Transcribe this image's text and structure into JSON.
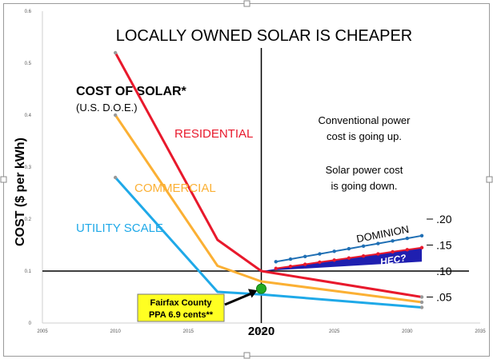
{
  "chart_data": {
    "type": "line",
    "title": "LOCALLY OWNED SOLAR IS CHEAPER",
    "subtitle": "COST OF SOLAR*",
    "subtitle_source": "(U.S. D.O.E.)",
    "ylabel": "COST ($ per kWh)",
    "xlabel": "",
    "xlim": [
      2005,
      2035
    ],
    "ylim": [
      0,
      0.6
    ],
    "x_ticks": [
      "2005",
      "2010",
      "2015",
      "2020",
      "2025",
      "2030",
      "2035"
    ],
    "y_ticks": [
      "0",
      "0.1",
      "0.2",
      "0.3",
      "0.4",
      "0.5",
      "0.6"
    ],
    "right_ticks": [
      {
        "value": 0.2,
        "label": ".20"
      },
      {
        "value": 0.15,
        "label": ".15"
      },
      {
        "value": 0.1,
        "label": ".10"
      },
      {
        "value": 0.05,
        "label": ".05"
      }
    ],
    "grid": false,
    "reference_line": {
      "y": 0.1
    },
    "year_marker": {
      "x": 2020,
      "label": "2020"
    },
    "series": [
      {
        "name": "RESIDENTIAL",
        "color": "#e8192c",
        "x": [
          2010,
          2017,
          2020,
          2031
        ],
        "y": [
          0.52,
          0.16,
          0.1,
          0.05
        ]
      },
      {
        "name": "COMMERCIAL",
        "color": "#fbb034",
        "x": [
          2010,
          2017,
          2020,
          2031
        ],
        "y": [
          0.4,
          0.11,
          0.08,
          0.04
        ]
      },
      {
        "name": "UTILITY SCALE",
        "color": "#1fa9e8",
        "x": [
          2010,
          2017,
          2020,
          2031
        ],
        "y": [
          0.28,
          0.06,
          0.055,
          0.03
        ]
      },
      {
        "name": "DOMINION",
        "color": "#1f6fb4",
        "x": [
          2021,
          2022,
          2023,
          2024,
          2025,
          2026,
          2027,
          2028,
          2029,
          2030,
          2031
        ],
        "y": [
          0.118,
          0.123,
          0.128,
          0.133,
          0.138,
          0.143,
          0.148,
          0.153,
          0.158,
          0.163,
          0.168
        ]
      },
      {
        "name": "HEC?",
        "color": "#e8192c",
        "x": [
          2021,
          2022,
          2023,
          2024,
          2025,
          2026,
          2027,
          2028,
          2029,
          2030,
          2031
        ],
        "y": [
          0.105,
          0.109,
          0.113,
          0.117,
          0.121,
          0.125,
          0.129,
          0.133,
          0.137,
          0.141,
          0.145
        ]
      }
    ],
    "wedge_label": "HEC?",
    "wedge_color": "#1f1fb0",
    "annotations": [
      {
        "text": "Conventional power cost is going up.",
        "lines": [
          "Conventional power",
          "cost is going up."
        ]
      },
      {
        "text": "Solar power cost is going down.",
        "lines": [
          "Solar power cost",
          "is going down."
        ]
      }
    ],
    "callout": {
      "lines": [
        "Fairfax County",
        "PPA  6.9 cents**"
      ],
      "point": {
        "x": 2020,
        "y": 0.066
      },
      "box_color": "#ffff22",
      "dot_color": "#22aa22"
    }
  }
}
